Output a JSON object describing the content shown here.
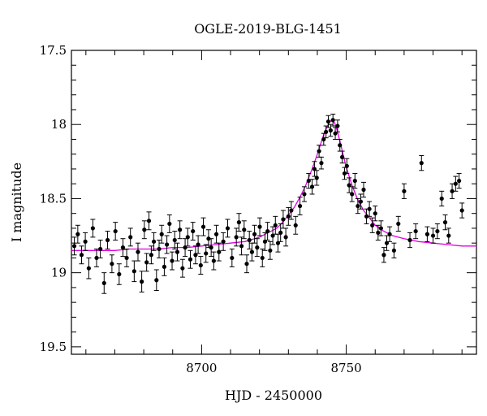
{
  "chart_data": {
    "type": "scatter",
    "title": "OGLE-2019-BLG-1451",
    "xlabel": "HJD - 2450000",
    "ylabel": "I magnitude",
    "xlim": [
      8655,
      8795
    ],
    "ylim": [
      19.55,
      17.5
    ],
    "y_inverted": true,
    "x_ticks": [
      8700,
      8750
    ],
    "y_ticks": [
      17.5,
      18,
      18.5,
      19,
      19.5
    ],
    "x_tick_labels": [
      "8700",
      "8750"
    ],
    "y_tick_labels": [
      "17.5",
      "18",
      "18.5",
      "19",
      "19.5"
    ],
    "grid": false,
    "legend": "none",
    "series": [
      {
        "kind": "points-with-error-bars",
        "color": "#000000",
        "x": [
          8656.0,
          8657.2,
          8658.5,
          8659.8,
          8661.0,
          8662.4,
          8663.7,
          8665.0,
          8666.3,
          8667.5,
          8669.0,
          8670.2,
          8671.5,
          8672.8,
          8674.1,
          8675.4,
          8676.7,
          8678.0,
          8679.3,
          8680.2,
          8681.0,
          8681.8,
          8682.6,
          8683.5,
          8684.4,
          8685.3,
          8686.2,
          8687.1,
          8688.0,
          8688.9,
          8689.8,
          8690.7,
          8691.6,
          8692.5,
          8693.4,
          8694.3,
          8695.2,
          8696.1,
          8697.0,
          8697.9,
          8698.8,
          8699.7,
          8700.6,
          8701.5,
          8702.4,
          8703.3,
          8704.2,
          8705.1,
          8706.0,
          8707.5,
          8709.0,
          8710.5,
          8712.0,
          8712.9,
          8713.8,
          8714.7,
          8715.6,
          8716.5,
          8717.4,
          8718.3,
          8719.2,
          8720.1,
          8721.0,
          8721.9,
          8722.8,
          8723.7,
          8724.6,
          8725.5,
          8726.4,
          8727.3,
          8728.2,
          8729.1,
          8730.0,
          8731.0,
          8732.5,
          8734.0,
          8735.5,
          8737.0,
          8738.2,
          8739.0,
          8739.8,
          8740.6,
          8741.4,
          8742.2,
          8743.0,
          8743.8,
          8744.6,
          8745.4,
          8746.2,
          8747.0,
          8747.8,
          8748.6,
          8749.4,
          8750.2,
          8751.0,
          8752.0,
          8753.0,
          8754.0,
          8755.0,
          8756.0,
          8757.0,
          8758.0,
          8759.0,
          8760.0,
          8761.0,
          8762.0,
          8763.0,
          8764.0,
          8765.0,
          8766.5,
          8768.0,
          8770.0,
          8772.0,
          8774.0,
          8776.0,
          8778.0,
          8780.0,
          8781.5,
          8783.0,
          8784.2,
          8785.4,
          8786.6,
          8787.8,
          8789.0,
          8790.0
        ],
        "y": [
          18.82,
          18.74,
          18.88,
          18.79,
          18.97,
          18.7,
          18.9,
          18.84,
          19.07,
          18.78,
          18.94,
          18.72,
          19.01,
          18.83,
          18.9,
          18.76,
          18.99,
          18.86,
          19.06,
          18.71,
          18.93,
          18.65,
          18.88,
          18.79,
          19.05,
          18.84,
          18.74,
          18.96,
          18.81,
          18.67,
          18.92,
          18.78,
          18.86,
          18.71,
          18.97,
          18.83,
          18.76,
          18.91,
          18.72,
          18.88,
          18.81,
          18.95,
          18.69,
          18.87,
          18.77,
          18.83,
          18.92,
          18.74,
          18.86,
          18.79,
          18.7,
          18.9,
          18.76,
          18.66,
          18.82,
          18.71,
          18.94,
          18.78,
          18.86,
          18.74,
          18.83,
          18.69,
          18.9,
          18.79,
          18.72,
          18.85,
          18.75,
          18.68,
          18.8,
          18.73,
          18.64,
          18.76,
          18.62,
          18.58,
          18.68,
          18.55,
          18.47,
          18.38,
          18.42,
          18.3,
          18.36,
          18.18,
          18.26,
          18.1,
          18.05,
          17.98,
          18.04,
          17.97,
          18.06,
          18.01,
          18.14,
          18.22,
          18.33,
          18.28,
          18.41,
          18.47,
          18.38,
          18.55,
          18.52,
          18.44,
          18.62,
          18.57,
          18.68,
          18.6,
          18.73,
          18.7,
          18.88,
          18.8,
          18.74,
          18.85,
          18.67,
          18.45,
          18.78,
          18.72,
          18.26,
          18.74,
          18.75,
          18.72,
          18.5,
          18.66,
          18.75,
          18.45,
          18.4,
          18.38,
          18.58
        ],
        "yerr": [
          0.06,
          0.06,
          0.06,
          0.06,
          0.07,
          0.06,
          0.06,
          0.06,
          0.07,
          0.06,
          0.06,
          0.06,
          0.07,
          0.06,
          0.06,
          0.06,
          0.07,
          0.06,
          0.07,
          0.06,
          0.06,
          0.06,
          0.06,
          0.06,
          0.07,
          0.06,
          0.06,
          0.06,
          0.06,
          0.06,
          0.06,
          0.06,
          0.06,
          0.06,
          0.06,
          0.06,
          0.06,
          0.06,
          0.06,
          0.06,
          0.06,
          0.06,
          0.06,
          0.06,
          0.06,
          0.06,
          0.06,
          0.06,
          0.06,
          0.06,
          0.06,
          0.06,
          0.06,
          0.06,
          0.06,
          0.06,
          0.06,
          0.06,
          0.06,
          0.06,
          0.06,
          0.06,
          0.06,
          0.06,
          0.06,
          0.06,
          0.06,
          0.06,
          0.06,
          0.06,
          0.06,
          0.06,
          0.06,
          0.06,
          0.06,
          0.06,
          0.05,
          0.05,
          0.05,
          0.05,
          0.05,
          0.04,
          0.04,
          0.04,
          0.04,
          0.04,
          0.04,
          0.04,
          0.04,
          0.04,
          0.04,
          0.04,
          0.04,
          0.05,
          0.05,
          0.05,
          0.05,
          0.05,
          0.05,
          0.05,
          0.05,
          0.05,
          0.05,
          0.05,
          0.05,
          0.05,
          0.05,
          0.05,
          0.05,
          0.05,
          0.05,
          0.05,
          0.05,
          0.05,
          0.05,
          0.05,
          0.05,
          0.05,
          0.05,
          0.05,
          0.05,
          0.05,
          0.05,
          0.05,
          0.05
        ]
      },
      {
        "kind": "model-curve",
        "color": "#e000e0",
        "x": [
          8655,
          8660,
          8665,
          8670,
          8675,
          8680,
          8685,
          8690,
          8695,
          8700,
          8705,
          8710,
          8715,
          8720,
          8722,
          8724,
          8726,
          8728,
          8730,
          8732,
          8734,
          8736,
          8738,
          8740,
          8742,
          8743,
          8744,
          8745,
          8746,
          8747,
          8748,
          8750,
          8752,
          8754,
          8756,
          8758,
          8760,
          8763,
          8766,
          8770,
          8775,
          8780,
          8785,
          8790,
          8795
        ],
        "y": [
          18.85,
          18.85,
          18.85,
          18.85,
          18.84,
          18.84,
          18.84,
          18.83,
          18.83,
          18.82,
          18.81,
          18.8,
          18.79,
          18.76,
          18.74,
          18.72,
          18.7,
          18.66,
          18.61,
          18.56,
          18.49,
          18.41,
          18.31,
          18.2,
          18.08,
          18.03,
          17.99,
          17.97,
          17.99,
          18.05,
          18.13,
          18.29,
          18.41,
          18.51,
          18.58,
          18.63,
          18.68,
          18.72,
          18.75,
          18.77,
          18.79,
          18.8,
          18.81,
          18.82,
          18.82
        ]
      }
    ]
  }
}
